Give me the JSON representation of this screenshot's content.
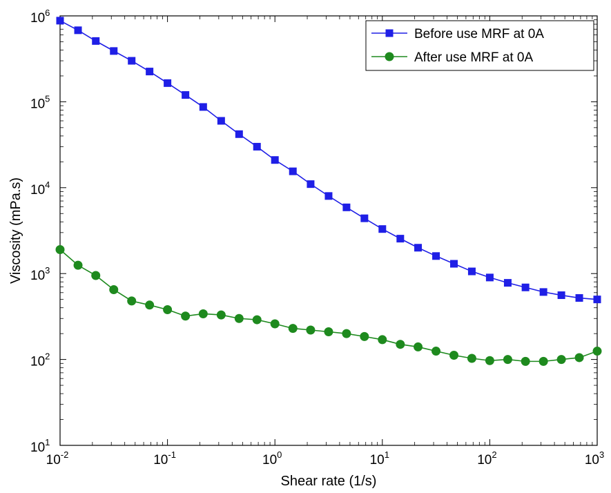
{
  "chart_data": {
    "type": "line",
    "xscale": "log",
    "yscale": "log",
    "xlim": [
      0.01,
      1000
    ],
    "ylim": [
      10,
      1000000
    ],
    "xlabel": "Shear rate (1/s)",
    "ylabel": "Viscosity (mPa.s)",
    "x_ticks": [
      {
        "base": "10",
        "exp": "-2",
        "value": 0.01
      },
      {
        "base": "10",
        "exp": "-1",
        "value": 0.1
      },
      {
        "base": "10",
        "exp": "0",
        "value": 1
      },
      {
        "base": "10",
        "exp": "1",
        "value": 10
      },
      {
        "base": "10",
        "exp": "2",
        "value": 100
      },
      {
        "base": "10",
        "exp": "3",
        "value": 1000
      }
    ],
    "y_ticks": [
      {
        "base": "10",
        "exp": "1",
        "value": 10
      },
      {
        "base": "10",
        "exp": "2",
        "value": 100
      },
      {
        "base": "10",
        "exp": "3",
        "value": 1000
      },
      {
        "base": "10",
        "exp": "4",
        "value": 10000
      },
      {
        "base": "10",
        "exp": "5",
        "value": 100000
      },
      {
        "base": "10",
        "exp": "6",
        "value": 1000000
      }
    ],
    "grid": false,
    "legend_position": "top-right",
    "x": [
      0.01,
      0.0147,
      0.0215,
      0.0316,
      0.0464,
      0.0681,
      0.1,
      0.147,
      0.215,
      0.316,
      0.464,
      0.681,
      1,
      1.47,
      2.15,
      3.16,
      4.64,
      6.81,
      10,
      14.7,
      21.5,
      31.6,
      46.4,
      68.1,
      100,
      147,
      215,
      316,
      464,
      681,
      1000
    ],
    "series": [
      {
        "name": "Before use MRF at 0A",
        "color": "#1f1fe6",
        "marker": "square",
        "values": [
          880000,
          680000,
          510000,
          390000,
          300000,
          225000,
          165000,
          120000,
          87000,
          60000,
          42000,
          30000,
          21000,
          15500,
          11000,
          8000,
          5900,
          4400,
          3300,
          2550,
          2000,
          1600,
          1300,
          1060,
          900,
          780,
          690,
          610,
          560,
          520,
          500
        ]
      },
      {
        "name": "After use MRF at 0A",
        "color": "#1e8a1e",
        "marker": "circle",
        "values": [
          1900,
          1250,
          950,
          650,
          480,
          430,
          380,
          320,
          340,
          330,
          300,
          290,
          260,
          230,
          220,
          210,
          200,
          185,
          170,
          150,
          140,
          125,
          112,
          103,
          97,
          100,
          95,
          95,
          100,
          105,
          125
        ]
      }
    ]
  }
}
